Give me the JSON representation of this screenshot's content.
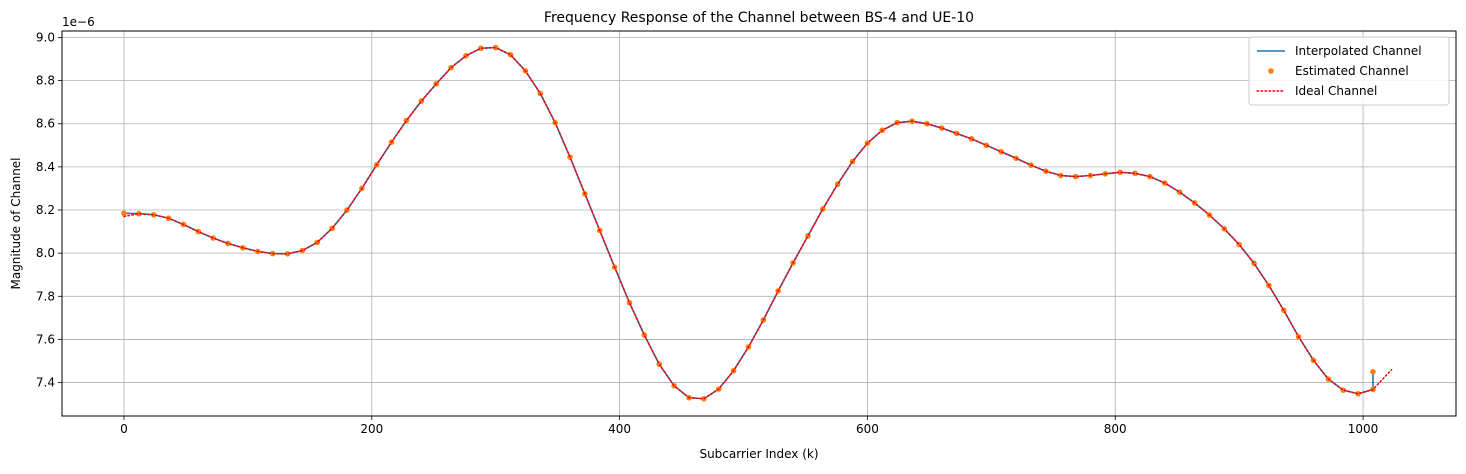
{
  "chart_data": {
    "type": "line",
    "title": "Frequency Response of the Channel between BS-4 and UE-10",
    "xlabel": "Subcarrier Index (k)",
    "ylabel": "Magnitude of Channel",
    "y_offset_label": "1e−6",
    "xlim": [
      -50,
      1075
    ],
    "ylim": [
      7.245,
      9.03
    ],
    "x_ticks": [
      0,
      200,
      400,
      600,
      800,
      1000
    ],
    "x_tick_labels": [
      "0",
      "200",
      "400",
      "600",
      "800",
      "1000"
    ],
    "y_ticks": [
      7.4,
      7.6,
      7.8,
      8.0,
      8.2,
      8.4,
      8.6,
      8.8,
      9.0
    ],
    "y_tick_labels": [
      "7.4",
      "7.6",
      "7.8",
      "8.0",
      "8.2",
      "8.4",
      "8.6",
      "8.8",
      "9.0"
    ],
    "grid": true,
    "legend_position": "top-right",
    "series": [
      {
        "name": "Interpolated Channel",
        "style": "solid",
        "color": "#1f77b4",
        "x": [
          0,
          12,
          24,
          36,
          48,
          60,
          72,
          84,
          96,
          108,
          120,
          132,
          144,
          156,
          168,
          180,
          192,
          204,
          216,
          228,
          240,
          252,
          264,
          276,
          288,
          300,
          312,
          324,
          336,
          348,
          360,
          372,
          384,
          396,
          408,
          420,
          432,
          444,
          456,
          468,
          480,
          492,
          504,
          516,
          528,
          540,
          552,
          564,
          576,
          588,
          600,
          612,
          624,
          636,
          648,
          660,
          672,
          684,
          696,
          708,
          720,
          732,
          744,
          756,
          768,
          780,
          792,
          804,
          816,
          828,
          840,
          852,
          864,
          876,
          888,
          900,
          912,
          924,
          936,
          948,
          960,
          972,
          984,
          996,
          1008,
          1008
        ],
        "y": [
          8.185,
          8.183,
          8.178,
          8.162,
          8.133,
          8.1,
          8.07,
          8.045,
          8.025,
          8.008,
          7.998,
          7.997,
          8.012,
          8.05,
          8.115,
          8.2,
          8.3,
          8.41,
          8.515,
          8.615,
          8.705,
          8.785,
          8.86,
          8.915,
          8.95,
          8.953,
          8.92,
          8.845,
          8.74,
          8.605,
          8.445,
          8.275,
          8.105,
          7.935,
          7.77,
          7.62,
          7.485,
          7.385,
          7.33,
          7.325,
          7.37,
          7.455,
          7.565,
          7.69,
          7.825,
          7.955,
          8.08,
          8.205,
          8.32,
          8.425,
          8.51,
          8.57,
          8.605,
          8.612,
          8.6,
          8.58,
          8.555,
          8.53,
          8.5,
          8.47,
          8.44,
          8.408,
          8.38,
          8.36,
          8.355,
          8.36,
          8.368,
          8.375,
          8.37,
          8.355,
          8.325,
          8.283,
          8.233,
          8.177,
          8.113,
          8.04,
          7.953,
          7.85,
          7.735,
          7.612,
          7.503,
          7.416,
          7.365,
          7.348,
          7.368,
          7.45
        ]
      },
      {
        "name": "Estimated Channel",
        "style": "markers",
        "color": "#ff7f0e",
        "x": [
          0,
          12,
          24,
          36,
          48,
          60,
          72,
          84,
          96,
          108,
          120,
          132,
          144,
          156,
          168,
          180,
          192,
          204,
          216,
          228,
          240,
          252,
          264,
          276,
          288,
          300,
          312,
          324,
          336,
          348,
          360,
          372,
          384,
          396,
          408,
          420,
          432,
          444,
          456,
          468,
          480,
          492,
          504,
          516,
          528,
          540,
          552,
          564,
          576,
          588,
          600,
          612,
          624,
          636,
          648,
          660,
          672,
          684,
          696,
          708,
          720,
          732,
          744,
          756,
          768,
          780,
          792,
          804,
          816,
          828,
          840,
          852,
          864,
          876,
          888,
          900,
          912,
          924,
          936,
          948,
          960,
          972,
          984,
          996,
          1008,
          1008
        ],
        "y": [
          8.185,
          8.183,
          8.178,
          8.162,
          8.133,
          8.1,
          8.07,
          8.045,
          8.025,
          8.008,
          7.998,
          7.997,
          8.012,
          8.05,
          8.115,
          8.2,
          8.3,
          8.41,
          8.515,
          8.615,
          8.705,
          8.785,
          8.86,
          8.915,
          8.95,
          8.953,
          8.92,
          8.845,
          8.74,
          8.605,
          8.445,
          8.275,
          8.105,
          7.935,
          7.77,
          7.62,
          7.485,
          7.385,
          7.33,
          7.325,
          7.37,
          7.455,
          7.565,
          7.69,
          7.825,
          7.955,
          8.08,
          8.205,
          8.32,
          8.425,
          8.51,
          8.57,
          8.605,
          8.612,
          8.6,
          8.58,
          8.555,
          8.53,
          8.5,
          8.47,
          8.44,
          8.408,
          8.38,
          8.36,
          8.355,
          8.36,
          8.368,
          8.375,
          8.37,
          8.355,
          8.325,
          8.283,
          8.233,
          8.177,
          8.113,
          8.04,
          7.953,
          7.85,
          7.735,
          7.612,
          7.503,
          7.416,
          7.365,
          7.348,
          7.368,
          7.45
        ]
      },
      {
        "name": "Ideal Channel",
        "style": "dotted",
        "color": "#ff0000",
        "x": [
          0,
          12,
          24,
          36,
          48,
          60,
          72,
          84,
          96,
          108,
          120,
          132,
          144,
          156,
          168,
          180,
          192,
          204,
          216,
          228,
          240,
          252,
          264,
          276,
          288,
          300,
          312,
          324,
          336,
          348,
          360,
          372,
          384,
          396,
          408,
          420,
          432,
          444,
          456,
          468,
          480,
          492,
          504,
          516,
          528,
          540,
          552,
          564,
          576,
          588,
          600,
          612,
          624,
          636,
          648,
          660,
          672,
          684,
          696,
          708,
          720,
          732,
          744,
          756,
          768,
          780,
          792,
          804,
          816,
          828,
          840,
          852,
          864,
          876,
          888,
          900,
          912,
          924,
          936,
          948,
          960,
          972,
          984,
          996,
          1008,
          1023
        ],
        "y": [
          8.17,
          8.183,
          8.178,
          8.162,
          8.133,
          8.1,
          8.07,
          8.045,
          8.025,
          8.008,
          7.998,
          7.997,
          8.012,
          8.05,
          8.115,
          8.2,
          8.3,
          8.41,
          8.515,
          8.615,
          8.705,
          8.785,
          8.86,
          8.915,
          8.95,
          8.953,
          8.92,
          8.845,
          8.74,
          8.605,
          8.445,
          8.275,
          8.105,
          7.935,
          7.77,
          7.62,
          7.485,
          7.385,
          7.33,
          7.325,
          7.37,
          7.455,
          7.565,
          7.69,
          7.825,
          7.955,
          8.08,
          8.205,
          8.32,
          8.425,
          8.51,
          8.57,
          8.605,
          8.612,
          8.6,
          8.58,
          8.555,
          8.53,
          8.5,
          8.47,
          8.44,
          8.408,
          8.38,
          8.36,
          8.355,
          8.36,
          8.368,
          8.375,
          8.37,
          8.355,
          8.325,
          8.283,
          8.233,
          8.177,
          8.113,
          8.04,
          7.953,
          7.85,
          7.735,
          7.612,
          7.503,
          7.416,
          7.365,
          7.348,
          7.368,
          7.46
        ]
      }
    ]
  }
}
